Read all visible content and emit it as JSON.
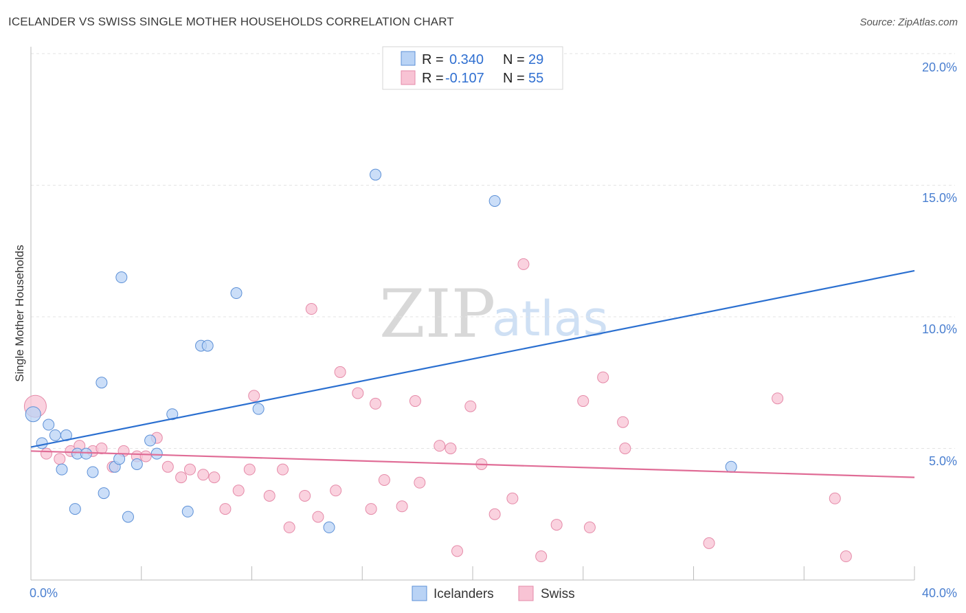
{
  "header": {
    "title": "ICELANDER VS SWISS SINGLE MOTHER HOUSEHOLDS CORRELATION CHART",
    "source": "Source: ZipAtlas.com"
  },
  "colors": {
    "icelanders_fill": "#b9d3f5",
    "icelanders_stroke": "#5b8fd6",
    "icelanders_line": "#2a6fd0",
    "swiss_fill": "#f8c3d4",
    "swiss_stroke": "#e58aa8",
    "swiss_line": "#e06c96"
  },
  "legend": {
    "rows": [
      {
        "r_label": "R =",
        "r_value": "0.340",
        "n_label": "N =",
        "n_value": "29"
      },
      {
        "r_label": "R =",
        "r_value": "-0.107",
        "n_label": "N =",
        "n_value": "55"
      }
    ]
  },
  "bottom_legend": [
    "Icelanders",
    "Swiss"
  ],
  "watermark": {
    "zip": "ZIP",
    "atlas": "atlas"
  },
  "chart_data": {
    "type": "scatter",
    "title": "ICELANDER VS SWISS SINGLE MOTHER HOUSEHOLDS CORRELATION CHART",
    "xlabel": "",
    "ylabel": "Single Mother Households",
    "xlim": [
      0,
      40
    ],
    "ylim": [
      0,
      20
    ],
    "x_tick_labels": [
      "0.0%",
      "40.0%"
    ],
    "y_tick_labels": [
      "5.0%",
      "10.0%",
      "15.0%",
      "20.0%"
    ],
    "y_ticks": [
      5,
      10,
      15,
      20
    ],
    "grid": true,
    "legend_position": "top-center",
    "series": [
      {
        "name": "Icelanders",
        "r": 0.34,
        "n": 29,
        "trend": {
          "x": [
            0,
            40
          ],
          "y": [
            5.05,
            11.75
          ]
        },
        "points": [
          [
            0.1,
            6.3
          ],
          [
            0.5,
            5.2
          ],
          [
            0.8,
            5.9
          ],
          [
            1.1,
            5.5
          ],
          [
            1.4,
            4.2
          ],
          [
            1.6,
            5.5
          ],
          [
            2.0,
            2.7
          ],
          [
            2.1,
            4.8
          ],
          [
            2.5,
            4.8
          ],
          [
            2.8,
            4.1
          ],
          [
            3.2,
            7.5
          ],
          [
            3.3,
            3.3
          ],
          [
            3.8,
            4.3
          ],
          [
            4.0,
            4.6
          ],
          [
            4.1,
            11.5
          ],
          [
            4.4,
            2.4
          ],
          [
            4.8,
            4.4
          ],
          [
            5.4,
            5.3
          ],
          [
            5.7,
            4.8
          ],
          [
            6.4,
            6.3
          ],
          [
            7.1,
            2.6
          ],
          [
            7.7,
            8.9
          ],
          [
            8.0,
            8.9
          ],
          [
            9.3,
            10.9
          ],
          [
            10.3,
            6.5
          ],
          [
            13.5,
            2.0
          ],
          [
            15.6,
            15.4
          ],
          [
            21.0,
            14.4
          ],
          [
            31.7,
            4.3
          ]
        ]
      },
      {
        "name": "Swiss",
        "r": -0.107,
        "n": 55,
        "trend": {
          "x": [
            0,
            40
          ],
          "y": [
            4.9,
            3.9
          ]
        },
        "points": [
          [
            0.2,
            6.6
          ],
          [
            0.7,
            4.8
          ],
          [
            1.3,
            4.6
          ],
          [
            1.8,
            4.9
          ],
          [
            2.2,
            5.1
          ],
          [
            2.8,
            4.9
          ],
          [
            3.2,
            5.0
          ],
          [
            3.7,
            4.3
          ],
          [
            4.2,
            4.9
          ],
          [
            4.8,
            4.7
          ],
          [
            5.2,
            4.7
          ],
          [
            5.7,
            5.4
          ],
          [
            6.2,
            4.3
          ],
          [
            6.8,
            3.9
          ],
          [
            7.2,
            4.2
          ],
          [
            7.8,
            4.0
          ],
          [
            8.3,
            3.9
          ],
          [
            8.8,
            2.7
          ],
          [
            9.4,
            3.4
          ],
          [
            9.9,
            4.2
          ],
          [
            10.1,
            7.0
          ],
          [
            10.8,
            3.2
          ],
          [
            11.4,
            4.2
          ],
          [
            11.7,
            2.0
          ],
          [
            12.4,
            3.2
          ],
          [
            12.7,
            10.3
          ],
          [
            13.0,
            2.4
          ],
          [
            13.8,
            3.4
          ],
          [
            14.0,
            7.9
          ],
          [
            14.8,
            7.1
          ],
          [
            15.4,
            2.7
          ],
          [
            15.6,
            6.7
          ],
          [
            16.0,
            3.8
          ],
          [
            16.8,
            2.8
          ],
          [
            17.4,
            6.8
          ],
          [
            17.6,
            3.7
          ],
          [
            18.5,
            5.1
          ],
          [
            19.0,
            5.0
          ],
          [
            19.3,
            1.1
          ],
          [
            19.9,
            6.6
          ],
          [
            20.4,
            4.4
          ],
          [
            21.0,
            2.5
          ],
          [
            21.8,
            3.1
          ],
          [
            22.3,
            12.0
          ],
          [
            23.1,
            0.9
          ],
          [
            23.8,
            2.1
          ],
          [
            25.0,
            6.8
          ],
          [
            25.3,
            2.0
          ],
          [
            25.9,
            7.7
          ],
          [
            26.8,
            6.0
          ],
          [
            26.9,
            5.0
          ],
          [
            30.7,
            1.4
          ],
          [
            33.8,
            6.9
          ],
          [
            36.4,
            3.1
          ],
          [
            36.9,
            0.9
          ]
        ]
      }
    ]
  }
}
